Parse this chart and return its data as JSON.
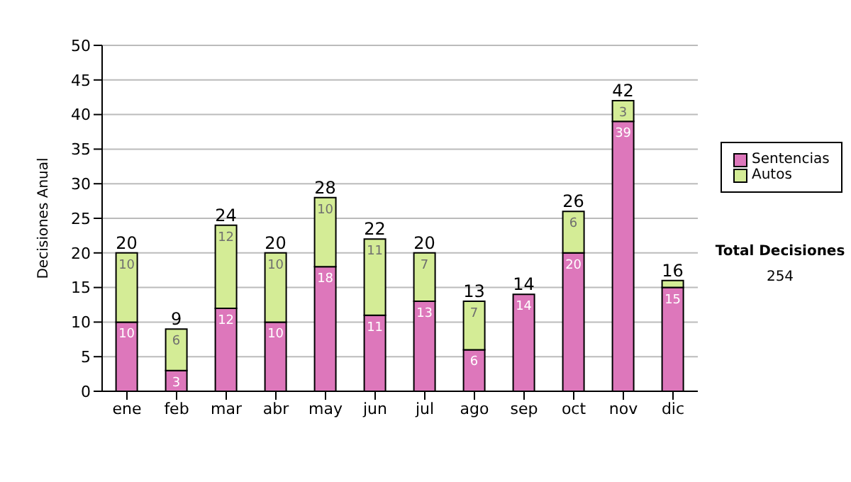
{
  "chart_data": {
    "type": "bar",
    "stacked": true,
    "ylabel": "Decisiones Anual",
    "categories": [
      "ene",
      "feb",
      "mar",
      "abr",
      "may",
      "jun",
      "jul",
      "ago",
      "sep",
      "oct",
      "nov",
      "dic"
    ],
    "series": [
      {
        "name": "Sentencias",
        "color": "#dd77bb",
        "values": [
          10,
          3,
          12,
          10,
          18,
          11,
          13,
          6,
          14,
          20,
          39,
          15
        ],
        "value_labels": [
          "10",
          "3",
          "12",
          "10",
          "18",
          "11",
          "13",
          "6",
          "14",
          "20",
          "39",
          "15"
        ]
      },
      {
        "name": "Autos",
        "color": "#d4ec96",
        "values": [
          10,
          6,
          12,
          10,
          10,
          11,
          7,
          7,
          0,
          6,
          3,
          1
        ],
        "value_labels": [
          "10",
          "6",
          "12",
          "10",
          "10",
          "11",
          "7",
          "7",
          null,
          "6",
          "3",
          null
        ]
      }
    ],
    "totals": [
      "20",
      "9",
      "24",
      "20",
      "28",
      "22",
      "20",
      "13",
      "14",
      "26",
      "42",
      "16"
    ],
    "ylim": [
      0,
      50
    ],
    "yticks": [
      0,
      5,
      10,
      15,
      20,
      25,
      30,
      35,
      40,
      45,
      50
    ],
    "grid": "y",
    "legend": "right",
    "annotations": [
      "Total Decisiones",
      "254"
    ]
  }
}
